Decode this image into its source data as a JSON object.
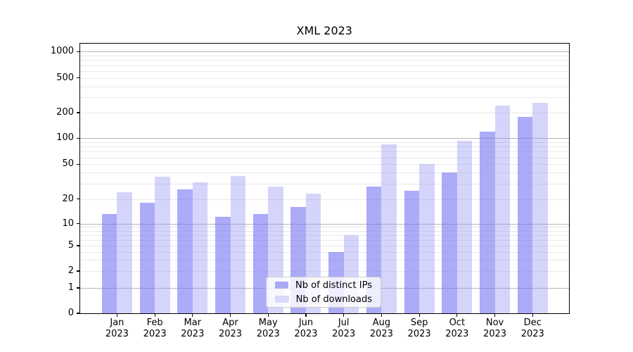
{
  "title": "XML 2023",
  "chart_data": {
    "type": "bar",
    "title": "XML 2023",
    "y_axis_scale": "log-like (symlog, 0 at baseline)",
    "y_ticks": [
      0,
      1,
      2,
      5,
      10,
      20,
      50,
      100,
      200,
      500,
      1000
    ],
    "y_tick_labels": [
      "0",
      "1",
      "2",
      "5",
      "10",
      "20",
      "50",
      "100",
      "200",
      "500",
      "1000"
    ],
    "major_grid_values": [
      1,
      10,
      100,
      1000
    ],
    "ylim": [
      0,
      1200
    ],
    "grid": true,
    "months": [
      "Jan",
      "Feb",
      "Mar",
      "Apr",
      "May",
      "Jun",
      "Jul",
      "Aug",
      "Sep",
      "Oct",
      "Nov",
      "Dec"
    ],
    "year": "2023",
    "categories": [
      "Jan 2023",
      "Feb 2023",
      "Mar 2023",
      "Apr 2023",
      "May 2023",
      "Jun 2023",
      "Jul 2023",
      "Aug 2023",
      "Sep 2023",
      "Oct 2023",
      "Nov 2023",
      "Dec 2023"
    ],
    "series": [
      {
        "name": "Nb of distinct IPs",
        "color": "rgba(120,120,242,0.62)",
        "legend_color": "#a9a9f2",
        "values": [
          13,
          18,
          26,
          12,
          13,
          16,
          4,
          28,
          25,
          40,
          120,
          180
        ]
      },
      {
        "name": "Nb of downloads",
        "color": "rgba(150,150,244,0.40)",
        "legend_color": "#d9d9fa",
        "values": [
          24,
          36,
          31,
          37,
          28,
          23,
          7,
          85,
          50,
          93,
          240,
          260
        ]
      }
    ],
    "legend_position": "lower center"
  },
  "colors": {
    "background": "#ffffff",
    "major_grid": "#b5b5b5",
    "minor_grid": "#e9e9e9",
    "spine": "#000000",
    "legend_border": "#cccccc"
  }
}
